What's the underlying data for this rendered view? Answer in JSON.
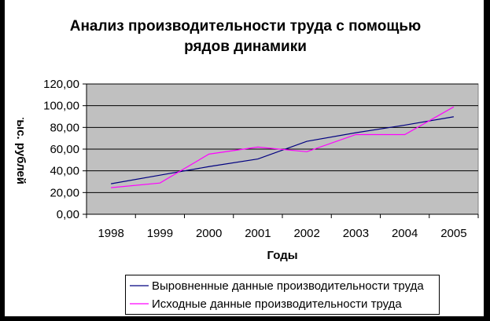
{
  "chart_data": {
    "type": "line",
    "title_lines": [
      "Анализ производительности труда с помощью",
      "рядов динамики"
    ],
    "xlabel": "Годы",
    "ylabel": "тыс. рублей",
    "categories": [
      "1998",
      "1999",
      "2000",
      "2001",
      "2002",
      "2003",
      "2004",
      "2005"
    ],
    "y_ticks": [
      "0,00",
      "20,00",
      "40,00",
      "60,00",
      "80,00",
      "100,00",
      "120,00"
    ],
    "ylim": [
      0,
      120
    ],
    "grid": true,
    "plot_background": "#c0c0c0",
    "legend_position": "bottom",
    "series": [
      {
        "name": "Выровненные данные производительности труда",
        "color": "#000080",
        "values": [
          28.1,
          36.0,
          43.9,
          50.9,
          67.2,
          75.1,
          82.1,
          89.8
        ]
      },
      {
        "name": "Исходные данные производительности труда",
        "color": "#ff00ff",
        "values": [
          24.5,
          28.8,
          55.4,
          61.9,
          57.6,
          73.4,
          73.4,
          98.9
        ]
      }
    ]
  }
}
